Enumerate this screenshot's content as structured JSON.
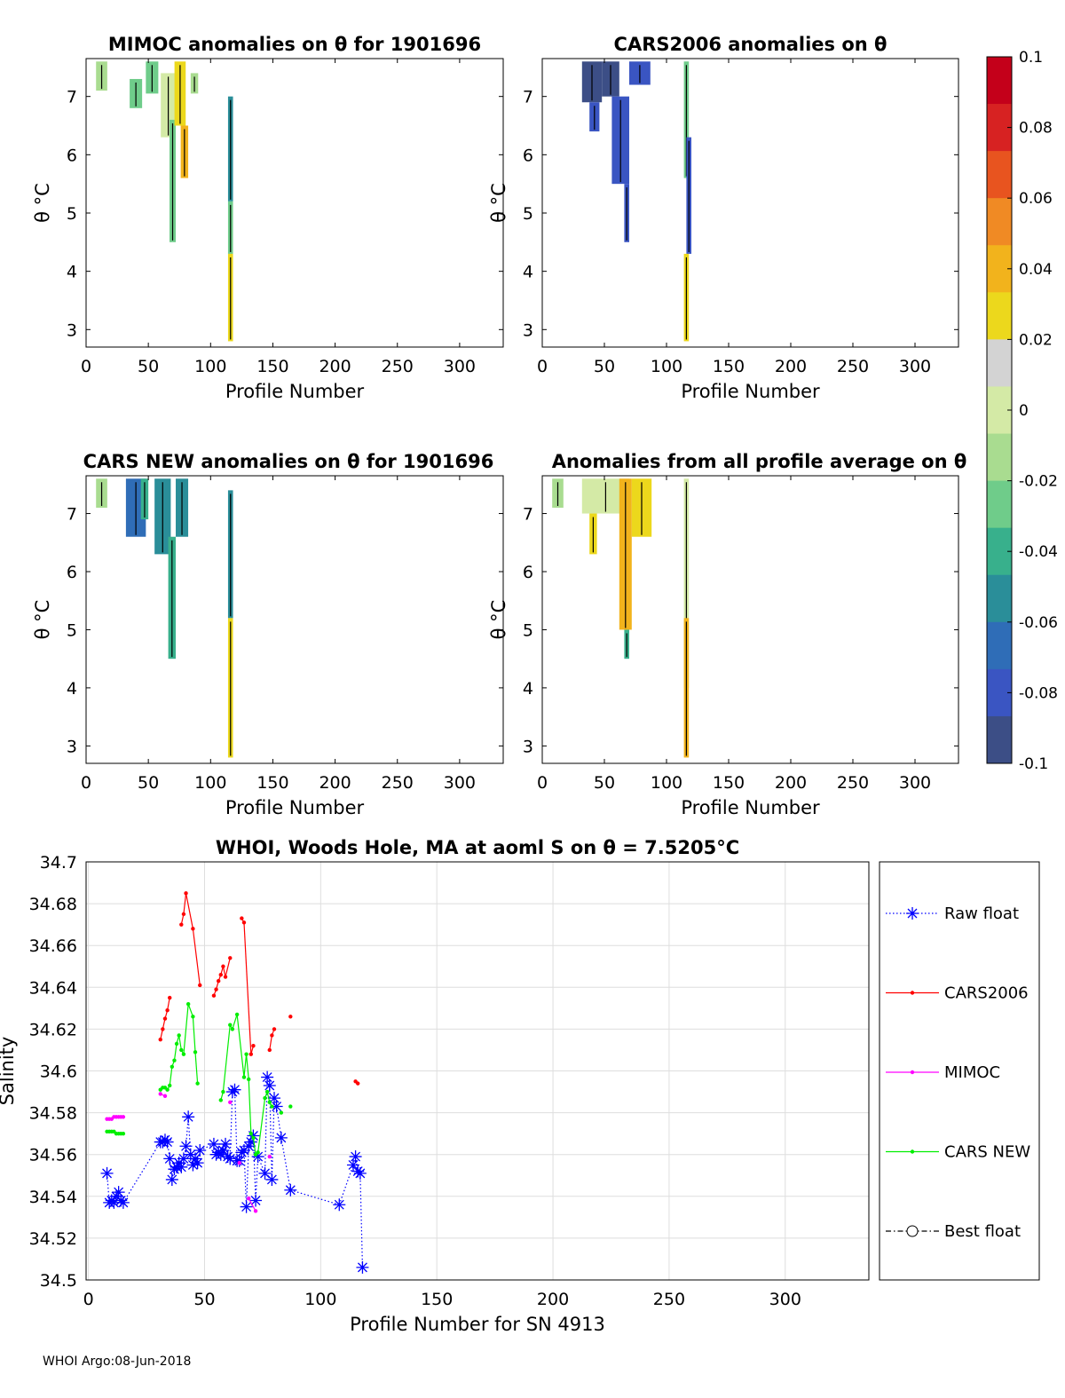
{
  "footer": "WHOI Argo:08-Jun-2018",
  "colorbar": {
    "ticks": [
      "0.1",
      "0.08",
      "0.06",
      "0.04",
      "0.02",
      "0",
      "-0.02",
      "-0.04",
      "-0.06",
      "-0.08",
      "-0.1"
    ],
    "range": [
      -0.1,
      0.1
    ],
    "colors": [
      "#c4001a",
      "#d72222",
      "#e8541f",
      "#f08a24",
      "#f2b31c",
      "#ecd81c",
      "#d3d3d3",
      "#d4eaa6",
      "#a9dc90",
      "#6fcc8a",
      "#38b08c",
      "#2a8e99",
      "#2f6db7",
      "#3a55c2",
      "#3c4e86"
    ]
  },
  "chart_data": [
    {
      "type": "heatmap",
      "title": "MIMOC anomalies on θ  for 1901696",
      "xlabel": "Profile Number",
      "ylabel": "θ °C",
      "xlim": [
        0,
        335
      ],
      "ylim": [
        2.7,
        7.65
      ],
      "xticks": [
        "0",
        "50",
        "100",
        "150",
        "200",
        "250",
        "300"
      ],
      "yticks": [
        "3",
        "4",
        "5",
        "6",
        "7"
      ],
      "patches": [
        {
          "x": [
            8,
            17
          ],
          "y": [
            7.1,
            7.6
          ],
          "v": -0.015
        },
        {
          "x": [
            35,
            45
          ],
          "y": [
            6.8,
            7.3
          ],
          "v": -0.02
        },
        {
          "x": [
            48,
            58
          ],
          "y": [
            7.05,
            7.6
          ],
          "v": -0.02
        },
        {
          "x": [
            60,
            72
          ],
          "y": [
            6.3,
            7.4
          ],
          "v": 0.005
        },
        {
          "x": [
            67,
            72
          ],
          "y": [
            4.5,
            6.6
          ],
          "v": -0.03
        },
        {
          "x": [
            71,
            80
          ],
          "y": [
            6.5,
            7.6
          ],
          "v": 0.03
        },
        {
          "x": [
            76,
            82
          ],
          "y": [
            5.6,
            6.5
          ],
          "v": 0.04
        },
        {
          "x": [
            84,
            90
          ],
          "y": [
            7.05,
            7.4
          ],
          "v": -0.015
        },
        {
          "x": [
            114,
            118
          ],
          "y": [
            5.2,
            7.0
          ],
          "v": -0.05
        },
        {
          "x": [
            114,
            118
          ],
          "y": [
            4.3,
            5.2
          ],
          "v": -0.02
        },
        {
          "x": [
            114,
            118
          ],
          "y": [
            2.8,
            4.3
          ],
          "v": 0.03
        }
      ]
    },
    {
      "type": "heatmap",
      "title": "CARS2006 anomalies on θ",
      "xlabel": "Profile Number",
      "ylabel": "θ °C",
      "xlim": [
        0,
        335
      ],
      "ylim": [
        2.7,
        7.65
      ],
      "xticks": [
        "0",
        "50",
        "100",
        "150",
        "200",
        "250",
        "300"
      ],
      "yticks": [
        "3",
        "4",
        "5",
        "6",
        "7"
      ],
      "patches": [
        {
          "x": [
            32,
            48
          ],
          "y": [
            6.9,
            7.6
          ],
          "v": -0.09
        },
        {
          "x": [
            38,
            46
          ],
          "y": [
            6.4,
            6.9
          ],
          "v": -0.085
        },
        {
          "x": [
            48,
            62
          ],
          "y": [
            7.0,
            7.6
          ],
          "v": -0.09
        },
        {
          "x": [
            56,
            70
          ],
          "y": [
            5.5,
            7.0
          ],
          "v": -0.085
        },
        {
          "x": [
            66,
            70
          ],
          "y": [
            4.5,
            5.5
          ],
          "v": -0.08
        },
        {
          "x": [
            70,
            87
          ],
          "y": [
            7.2,
            7.6
          ],
          "v": -0.08
        },
        {
          "x": [
            114,
            118
          ],
          "y": [
            5.6,
            7.6
          ],
          "v": -0.03
        },
        {
          "x": [
            116,
            120
          ],
          "y": [
            4.3,
            6.3
          ],
          "v": -0.08
        },
        {
          "x": [
            114,
            118
          ],
          "y": [
            2.8,
            4.3
          ],
          "v": 0.02
        }
      ]
    },
    {
      "type": "heatmap",
      "title": "CARS NEW anomalies on θ for 1901696",
      "xlabel": "Profile Number",
      "ylabel": "θ °C",
      "xlim": [
        0,
        335
      ],
      "ylim": [
        2.7,
        7.65
      ],
      "xticks": [
        "0",
        "50",
        "100",
        "150",
        "200",
        "250",
        "300"
      ],
      "yticks": [
        "3",
        "4",
        "5",
        "6",
        "7"
      ],
      "patches": [
        {
          "x": [
            8,
            17
          ],
          "y": [
            7.1,
            7.6
          ],
          "v": -0.015
        },
        {
          "x": [
            32,
            48
          ],
          "y": [
            6.6,
            7.6
          ],
          "v": -0.07
        },
        {
          "x": [
            44,
            50
          ],
          "y": [
            6.9,
            7.6
          ],
          "v": -0.045
        },
        {
          "x": [
            55,
            68
          ],
          "y": [
            6.3,
            7.6
          ],
          "v": -0.06
        },
        {
          "x": [
            66,
            72
          ],
          "y": [
            4.5,
            6.6
          ],
          "v": -0.04
        },
        {
          "x": [
            72,
            82
          ],
          "y": [
            6.6,
            7.6
          ],
          "v": -0.05
        },
        {
          "x": [
            114,
            118
          ],
          "y": [
            5.2,
            7.4
          ],
          "v": -0.06
        },
        {
          "x": [
            114,
            118
          ],
          "y": [
            2.8,
            5.2
          ],
          "v": 0.02
        }
      ]
    },
    {
      "type": "heatmap",
      "title": "Anomalies from all profile average on θ",
      "xlabel": "Profile Number",
      "ylabel": "θ °C",
      "xlim": [
        0,
        335
      ],
      "ylim": [
        2.7,
        7.65
      ],
      "xticks": [
        "0",
        "50",
        "100",
        "150",
        "200",
        "250",
        "300"
      ],
      "yticks": [
        "3",
        "4",
        "5",
        "6",
        "7"
      ],
      "patches": [
        {
          "x": [
            8,
            17
          ],
          "y": [
            7.1,
            7.6
          ],
          "v": -0.01
        },
        {
          "x": [
            32,
            70
          ],
          "y": [
            7.0,
            7.6
          ],
          "v": 0.0
        },
        {
          "x": [
            38,
            44
          ],
          "y": [
            6.3,
            7.0
          ],
          "v": 0.03
        },
        {
          "x": [
            62,
            72
          ],
          "y": [
            5.0,
            7.6
          ],
          "v": 0.035
        },
        {
          "x": [
            66,
            70
          ],
          "y": [
            4.5,
            5.0
          ],
          "v": -0.04
        },
        {
          "x": [
            72,
            88
          ],
          "y": [
            6.6,
            7.6
          ],
          "v": 0.03
        },
        {
          "x": [
            114,
            118
          ],
          "y": [
            4.0,
            7.6
          ],
          "v": 0.0
        },
        {
          "x": [
            114,
            118
          ],
          "y": [
            2.8,
            5.2
          ],
          "v": 0.035
        }
      ]
    },
    {
      "type": "line",
      "title": "WHOI, Woods Hole, MA at aoml S on θ = 7.5205°C",
      "xlabel": "Profile Number for SN 4913",
      "ylabel": "Salinity",
      "xlim": [
        -1,
        336
      ],
      "ylim": [
        34.5,
        34.7
      ],
      "xticks": [
        0,
        50,
        100,
        150,
        200,
        250,
        300
      ],
      "yticks": [
        34.5,
        34.52,
        34.54,
        34.56,
        34.58,
        34.6,
        34.62,
        34.64,
        34.66,
        34.68,
        34.7
      ],
      "grid": true,
      "legend_position": "right",
      "series": [
        {
          "name": "Raw float",
          "color": "#0000ff",
          "style": "dotted-star",
          "x": [
            8,
            9,
            10,
            11,
            12,
            13,
            14,
            15,
            31,
            32,
            33,
            34,
            35,
            36,
            37,
            38,
            39,
            40,
            41,
            42,
            43,
            44,
            45,
            46,
            47,
            48,
            54,
            55,
            56,
            57,
            58,
            59,
            60,
            61,
            62,
            63,
            64,
            65,
            66,
            67,
            68,
            69,
            70,
            71,
            72,
            73,
            76,
            77,
            78,
            79,
            80,
            81,
            83,
            87,
            108,
            114,
            115,
            116,
            117,
            118
          ],
          "y": [
            34.551,
            34.537,
            34.538,
            34.537,
            34.54,
            34.542,
            34.538,
            34.537,
            34.566,
            34.566,
            34.567,
            34.566,
            34.558,
            34.548,
            34.553,
            34.554,
            34.556,
            34.554,
            34.558,
            34.564,
            34.578,
            34.56,
            34.555,
            34.558,
            34.556,
            34.562,
            34.565,
            34.56,
            34.561,
            34.56,
            34.562,
            34.565,
            34.559,
            34.558,
            34.59,
            34.591,
            34.557,
            34.557,
            34.561,
            34.562,
            34.535,
            34.564,
            34.566,
            34.569,
            34.538,
            34.559,
            34.551,
            34.597,
            34.593,
            34.548,
            34.587,
            34.583,
            34.568,
            34.543,
            34.536,
            34.555,
            34.559,
            34.552,
            34.551,
            34.506
          ]
        },
        {
          "name": "CARS2006",
          "color": "#ff0000",
          "style": "solid-dot",
          "x": [
            31,
            32,
            33,
            34,
            35,
            40,
            41,
            42,
            45,
            48,
            54,
            55,
            56,
            57,
            58,
            59,
            61,
            66,
            67,
            70,
            71,
            78,
            79,
            80,
            87,
            115,
            116
          ],
          "y": [
            34.615,
            34.62,
            34.625,
            34.629,
            34.635,
            34.67,
            34.675,
            34.685,
            34.668,
            34.641,
            34.636,
            34.639,
            34.643,
            34.646,
            34.65,
            34.645,
            34.654,
            34.673,
            34.671,
            34.608,
            34.612,
            34.61,
            34.617,
            34.62,
            34.626,
            34.595,
            34.594
          ]
        },
        {
          "name": "MIMOC",
          "color": "#ff00ff",
          "style": "solid-dot",
          "x": [
            8,
            9,
            10,
            11,
            12,
            13,
            14,
            15,
            31,
            33,
            61,
            65,
            69,
            72,
            78
          ],
          "y": [
            34.577,
            34.577,
            34.577,
            34.578,
            34.578,
            34.578,
            34.578,
            34.578,
            34.589,
            34.588,
            34.585,
            34.556,
            34.539,
            34.533,
            34.559
          ]
        },
        {
          "name": "CARS NEW",
          "color": "#00ee00",
          "style": "solid-dot",
          "x": [
            8,
            9,
            10,
            11,
            12,
            13,
            14,
            15,
            31,
            32,
            33,
            34,
            35,
            36,
            37,
            38,
            39,
            40,
            41,
            43,
            45,
            46,
            47,
            57,
            58,
            61,
            62,
            64,
            67,
            68,
            69,
            70,
            71,
            72,
            73,
            76,
            77,
            78,
            79,
            83,
            87
          ],
          "y": [
            34.571,
            34.571,
            34.571,
            34.571,
            34.57,
            34.57,
            34.57,
            34.57,
            34.591,
            34.592,
            34.592,
            34.591,
            34.593,
            34.602,
            34.605,
            34.613,
            34.617,
            34.61,
            34.608,
            34.632,
            34.626,
            34.609,
            34.594,
            34.586,
            34.59,
            34.622,
            34.62,
            34.627,
            34.597,
            34.608,
            34.596,
            34.57,
            34.568,
            34.56,
            34.561,
            34.587,
            34.59,
            34.585,
            34.583,
            34.58,
            34.583
          ]
        },
        {
          "name": "Best float",
          "color": "#000000",
          "style": "dashdot-circle",
          "x": [],
          "y": []
        }
      ]
    }
  ]
}
